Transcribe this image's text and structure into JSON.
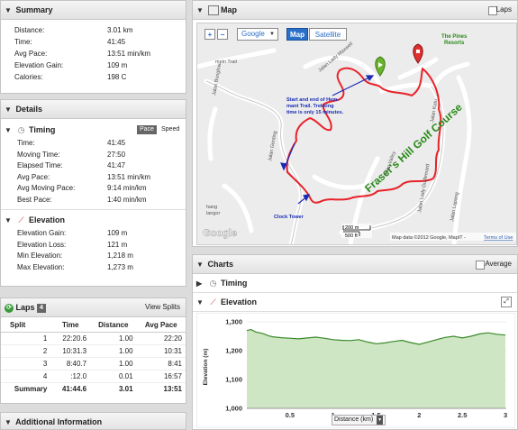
{
  "summary": {
    "title": "Summary",
    "rows": [
      {
        "label": "Distance:",
        "value": "3.01 km"
      },
      {
        "label": "Time:",
        "value": "41:45"
      },
      {
        "label": "Avg Pace:",
        "value": "13:51 min/km"
      },
      {
        "label": "Elevation Gain:",
        "value": "109 m"
      },
      {
        "label": "Calories:",
        "value": "198 C"
      }
    ]
  },
  "details": {
    "title": "Details",
    "timing": {
      "title": "Timing",
      "pace_label": "Pace",
      "speed_label": "Speed",
      "rows": [
        {
          "label": "Time:",
          "value": "41:45"
        },
        {
          "label": "Moving Time:",
          "value": "27:50"
        },
        {
          "label": "Elapsed Time:",
          "value": "41:47"
        },
        {
          "label": "Avg Pace:",
          "value": "13:51 min/km"
        },
        {
          "label": "Avg Moving Pace:",
          "value": "9:14 min/km"
        },
        {
          "label": "Best Pace:",
          "value": "1:40 min/km"
        }
      ]
    },
    "elevation": {
      "title": "Elevation",
      "rows": [
        {
          "label": "Elevation Gain:",
          "value": "109 m"
        },
        {
          "label": "Elevation Loss:",
          "value": "121 m"
        },
        {
          "label": "Min Elevation:",
          "value": "1,218 m"
        },
        {
          "label": "Max Elevation:",
          "value": "1,273 m"
        }
      ]
    }
  },
  "laps": {
    "title": "Laps",
    "count": "4",
    "view_splits": "View Splits",
    "headers": [
      "Split",
      "Time",
      "Distance",
      "Avg Pace"
    ],
    "rows": [
      [
        "1",
        "22:20.6",
        "1.00",
        "22:20"
      ],
      [
        "2",
        "10:31.3",
        "1.00",
        "10:31"
      ],
      [
        "3",
        "8:40.7",
        "1.00",
        "8:41"
      ],
      [
        "4",
        ":12.0",
        "0.01",
        "16:57"
      ]
    ],
    "summary": [
      "Summary",
      "41:44.6",
      "3.01",
      "13:51"
    ]
  },
  "additional": {
    "title": "Additional Information"
  },
  "map": {
    "title": "Map",
    "laps_label": "Laps",
    "provider": "Google",
    "type_map": "Map",
    "type_satellite": "Satellite",
    "zoom_in": "+",
    "zoom_out": "−",
    "annotation_start": [
      "Start and end of Hem-",
      "mant Trail. Trekking",
      "time is only 15 minutes."
    ],
    "course_label": "Fraser's Hill Golf Course",
    "pines_label": [
      "The Pines",
      "Resorts"
    ],
    "clock_tower": "Clock Tower",
    "roads": [
      "Jalan Lady Maxwell",
      "Jalan Genting",
      "Jalan Lady Guillemard",
      "Jalan Valley",
      "Jalan Kutu",
      "Jalan Bunglow",
      "Jalan Lapang",
      "mpin Trail",
      "hang",
      "langor"
    ],
    "scale_m": "200 m",
    "scale_ft": "500 ft",
    "logo": "Google",
    "copyright": "Map data ©2012 Google, MapIT -",
    "terms": "Terms of Use"
  },
  "charts": {
    "title": "Charts",
    "average_label": "Average",
    "timing_label": "Timing",
    "elevation_label": "Elevation",
    "xaxis_label": "Distance (km)"
  },
  "colors": {
    "route": "#e8232a",
    "elevation_fill": "#cfe6c4",
    "elevation_line": "#3a8a2a",
    "accent_blue": "#2a6fc9"
  },
  "chart_data": {
    "type": "area",
    "title": "Elevation",
    "xlabel": "Distance (km)",
    "ylabel": "Elevation (m)",
    "xlim": [
      0,
      3.01
    ],
    "ylim": [
      1000,
      1300
    ],
    "yticks": [
      1000,
      1100,
      1200,
      1300
    ],
    "ytick_labels": [
      "1,000",
      "1,100",
      "1,200",
      "1,300"
    ],
    "xticks": [
      0.5,
      1,
      1.5,
      2,
      2.5,
      3
    ],
    "xtick_labels": [
      "0.5",
      "1",
      "1.5",
      "2",
      "2.5",
      "3"
    ],
    "x": [
      0,
      0.05,
      0.1,
      0.15,
      0.2,
      0.25,
      0.3,
      0.4,
      0.5,
      0.6,
      0.7,
      0.8,
      0.9,
      1.0,
      1.1,
      1.2,
      1.3,
      1.4,
      1.5,
      1.6,
      1.7,
      1.8,
      1.9,
      2.0,
      2.1,
      2.2,
      2.3,
      2.4,
      2.5,
      2.6,
      2.7,
      2.8,
      2.9,
      3.0
    ],
    "y": [
      1270,
      1273,
      1265,
      1262,
      1258,
      1252,
      1248,
      1245,
      1243,
      1241,
      1244,
      1247,
      1243,
      1238,
      1236,
      1235,
      1238,
      1230,
      1224,
      1227,
      1232,
      1236,
      1228,
      1222,
      1230,
      1238,
      1246,
      1250,
      1244,
      1250,
      1258,
      1262,
      1257,
      1254
    ]
  }
}
